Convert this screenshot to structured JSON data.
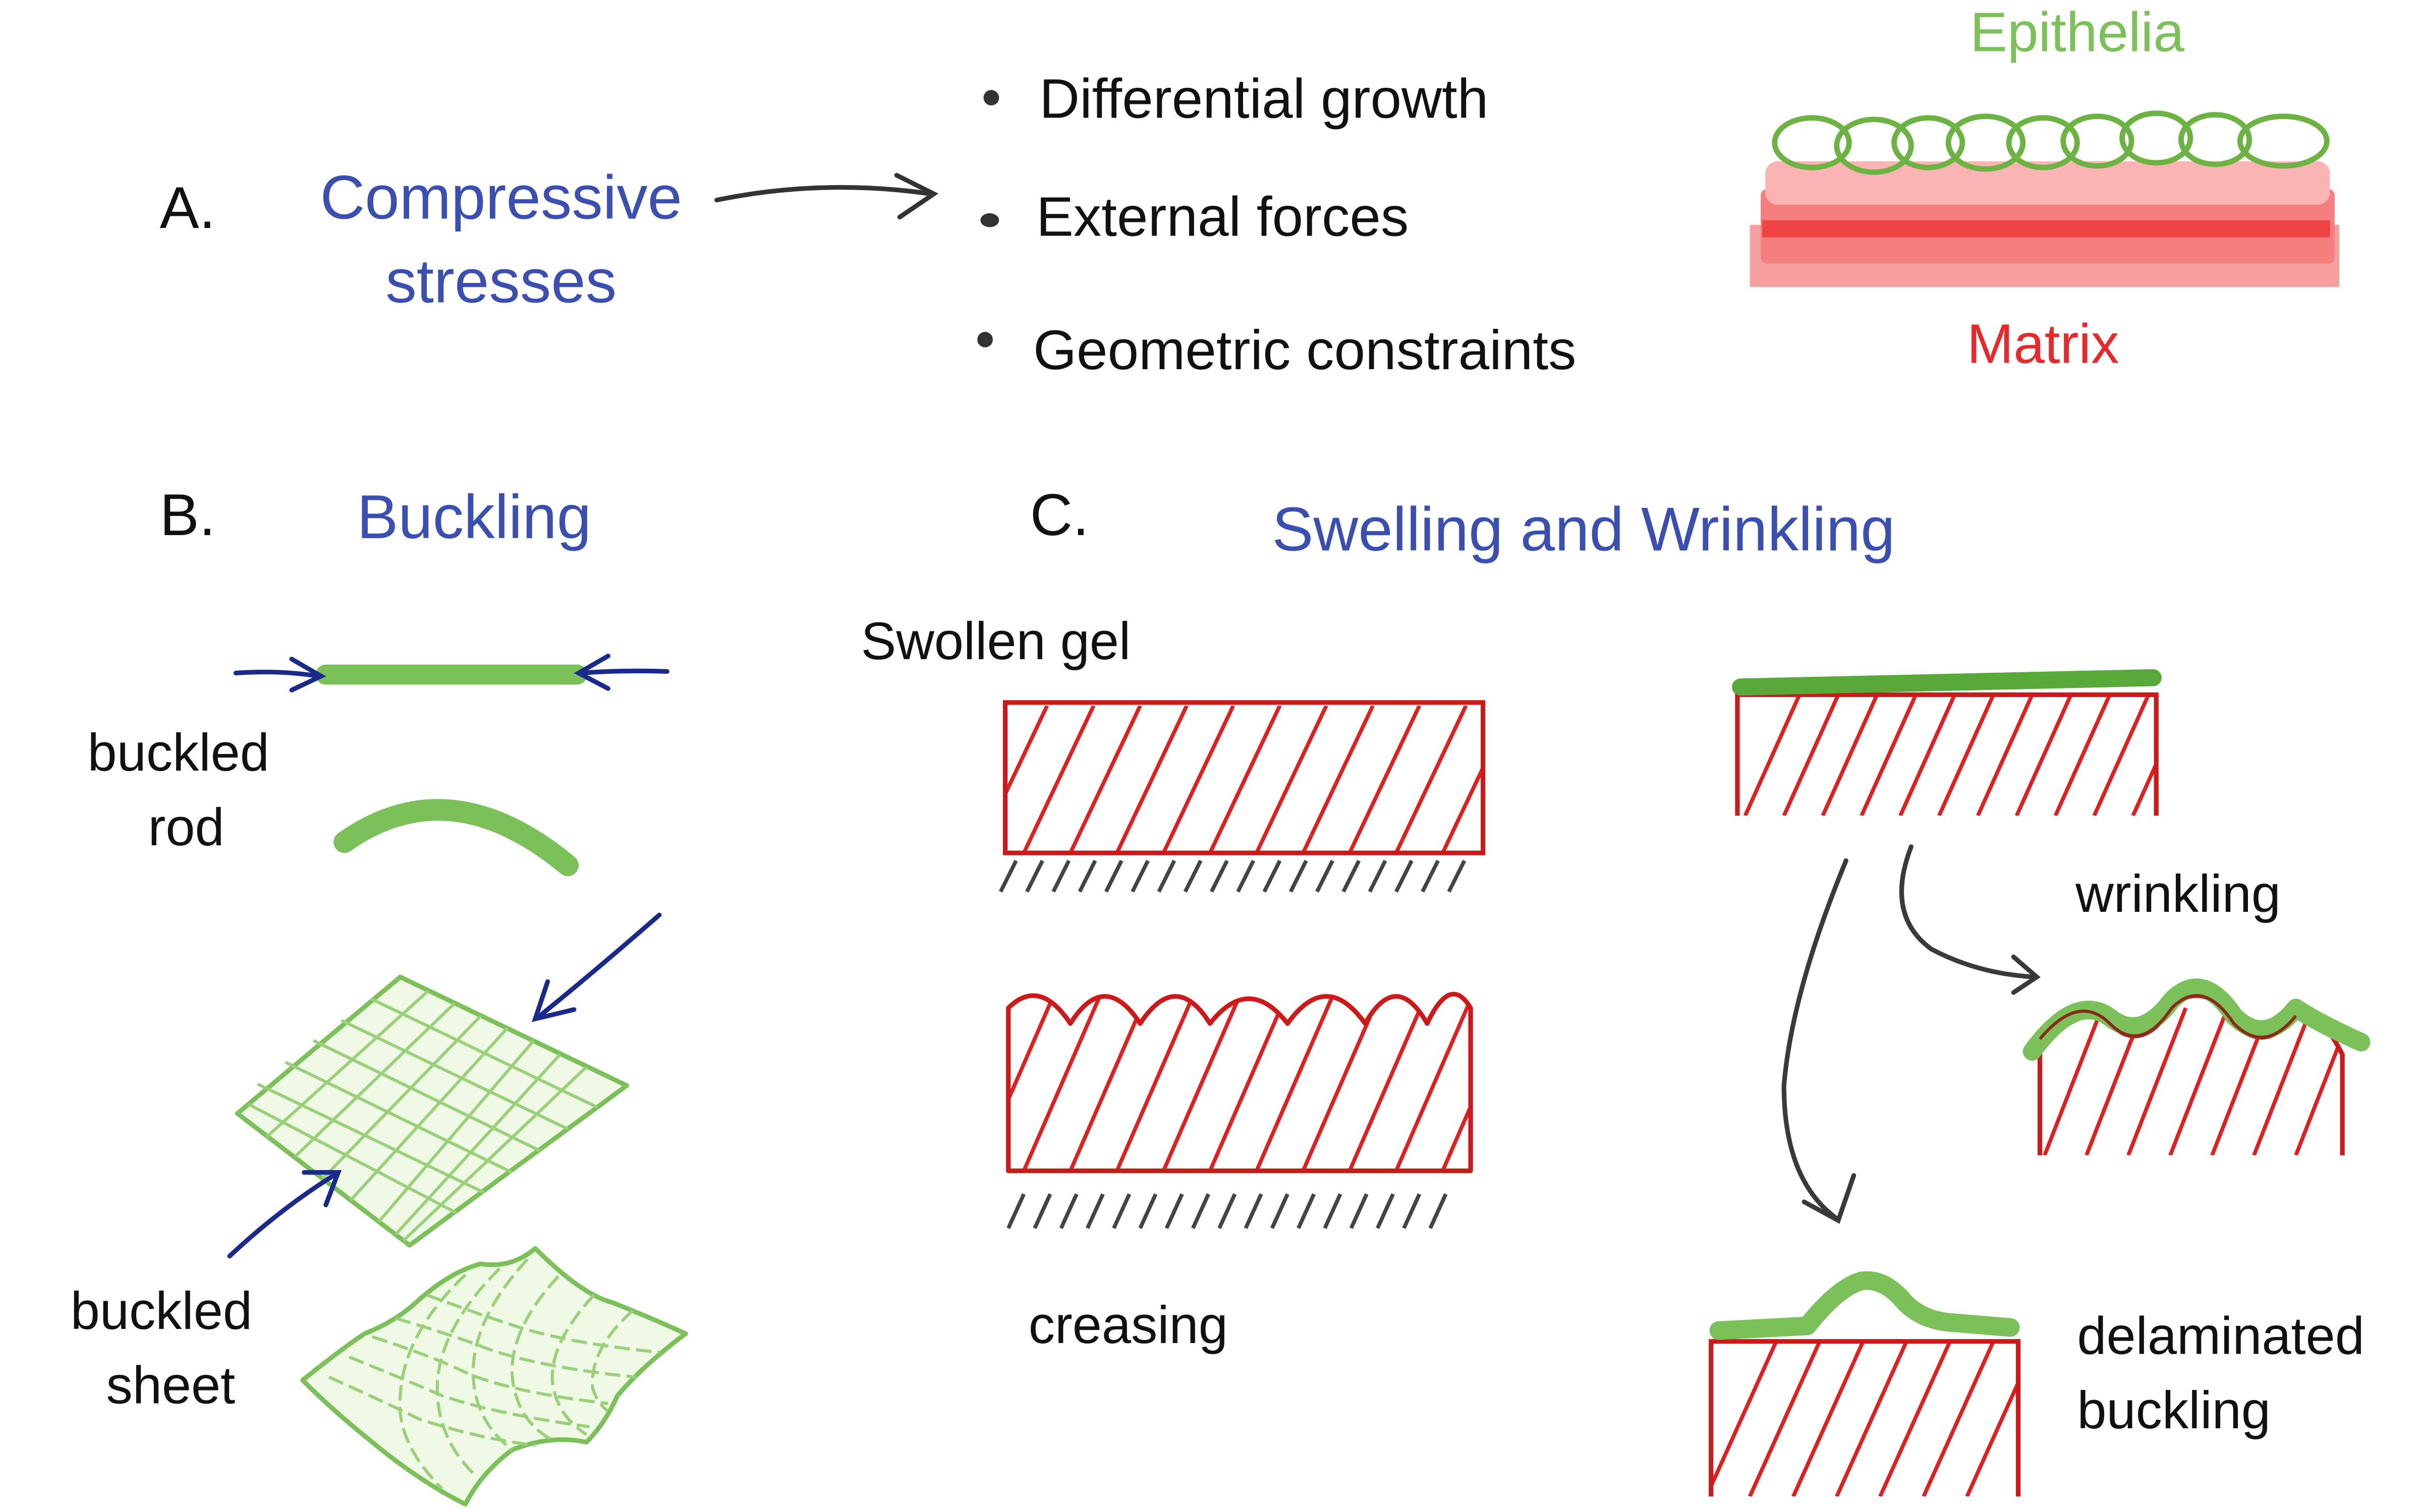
{
  "panelA": {
    "letter": "A.",
    "title_line1": "Compressive",
    "title_line2": "stresses",
    "bullets": [
      "Differential growth",
      "External forces",
      "Geometric constraints"
    ],
    "epithelia_label": "Epithelia",
    "matrix_label": "Matrix"
  },
  "panelB": {
    "letter": "B.",
    "title": "Buckling",
    "rod_label_line1": "buckled",
    "rod_label_line2": "rod",
    "sheet_label_line1": "buckled",
    "sheet_label_line2": "sheet"
  },
  "panelC": {
    "letter": "C.",
    "title": "Swelling and Wrinkling",
    "swollen_label": "Swollen gel",
    "creasing_label": "creasing",
    "wrinkling_label": "wrinkling",
    "delam_label_line1": "delaminated",
    "delam_label_line2": "buckling"
  },
  "colors": {
    "title_blue": "#3a4fb0",
    "epithelia_green": "#7cc05a",
    "matrix_red": "#e8282b",
    "arrow_navy": "#1a2a8a",
    "ink": "#111111"
  }
}
